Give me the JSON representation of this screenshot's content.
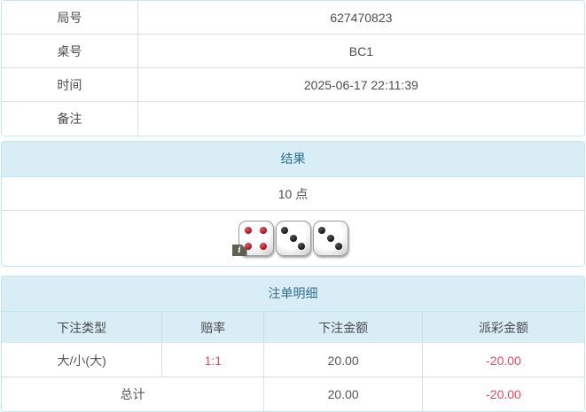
{
  "colors": {
    "panel_border": "#bce8f1",
    "panel_header_bg": "#d9edf7",
    "panel_title_text": "#31708f",
    "cell_border": "#dddddd",
    "body_text": "#4d4d4d",
    "negative_text": "#e9485c",
    "pip_red": "#a30f22",
    "pip_black": "#111111",
    "info_badge_bg": "#615f52"
  },
  "info_table": {
    "rows": [
      {
        "label": "局号",
        "value": "627470823"
      },
      {
        "label": "桌号",
        "value": "BC1"
      },
      {
        "label": "时间",
        "value": "2025-06-17 22:11:39"
      },
      {
        "label": "备注",
        "value": ""
      }
    ]
  },
  "result_panel": {
    "title": "结果",
    "points": "10 点",
    "info_badge": "i",
    "dice": [
      {
        "value": 4,
        "pip_color": "red",
        "has_info_badge": true
      },
      {
        "value": 3,
        "pip_color": "black",
        "has_info_badge": false
      },
      {
        "value": 3,
        "pip_color": "black",
        "has_info_badge": false
      }
    ]
  },
  "bet_panel": {
    "title": "注单明细",
    "columns": [
      "下注类型",
      "赔率",
      "下注金额",
      "派彩金额"
    ],
    "rows": [
      {
        "type": "大/小(大)",
        "odds": "1:1",
        "bet": "20.00",
        "payout": "-20.00"
      }
    ],
    "total": {
      "label": "总计",
      "bet": "20.00",
      "payout": "-20.00"
    }
  }
}
